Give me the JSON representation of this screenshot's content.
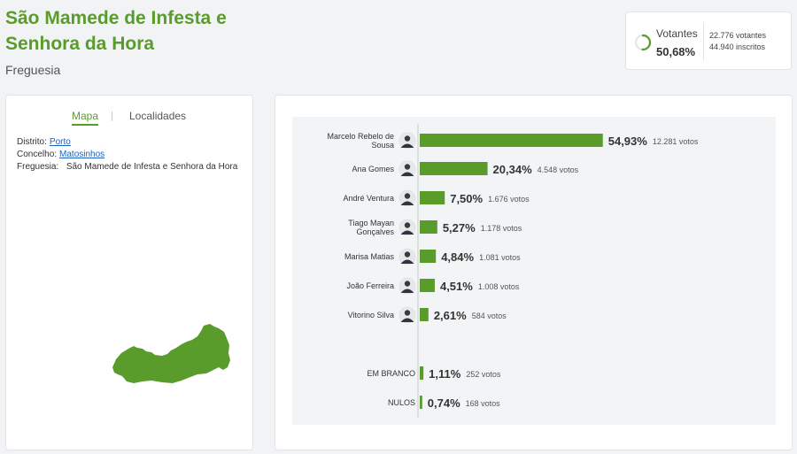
{
  "header": {
    "title": "São Mamede de Infesta e Senhora da Hora",
    "subtitle": "Freguesia"
  },
  "turnout": {
    "label": "Votantes",
    "percent": "50,68%",
    "percent_value": 50.68,
    "voters": "22.776 votantes",
    "registered": "44.940 inscritos"
  },
  "left_panel": {
    "tabs": {
      "map": "Mapa",
      "localities": "Localidades"
    },
    "district_label": "Distrito:",
    "district": "Porto",
    "council_label": "Concelho:",
    "council": "Matosinhos",
    "parish_label": "Freguesia:",
    "parish": "São Mamede de Infesta e Senhora da Hora"
  },
  "colors": {
    "accent": "#5a9c2b",
    "bar": "#5a9c2b",
    "link": "#1f5fbf"
  },
  "chart_data": {
    "type": "bar",
    "orientation": "horizontal",
    "title": "",
    "categories": [
      "Marcelo Rebelo de Sousa",
      "Ana Gomes",
      "André Ventura",
      "Tiago Mayan Gonçalves",
      "Marisa Matias",
      "João Ferreira",
      "Vitorino Silva",
      "EM BRANCO",
      "NULOS"
    ],
    "values": [
      54.93,
      20.34,
      7.5,
      5.27,
      4.84,
      4.51,
      2.61,
      1.11,
      0.74
    ],
    "value_labels": [
      "54,93%",
      "20,34%",
      "7,50%",
      "5,27%",
      "4,84%",
      "4,51%",
      "2,61%",
      "1,11%",
      "0,74%"
    ],
    "votes_labels": [
      "12.281 votos",
      "4.548 votos",
      "1.676 votos",
      "1.178 votos",
      "1.081 votos",
      "1.008 votos",
      "584 votos",
      "252 votos",
      "168 votos"
    ],
    "has_photo": [
      true,
      true,
      true,
      true,
      true,
      true,
      true,
      false,
      false
    ],
    "xlim": [
      0,
      55
    ]
  }
}
